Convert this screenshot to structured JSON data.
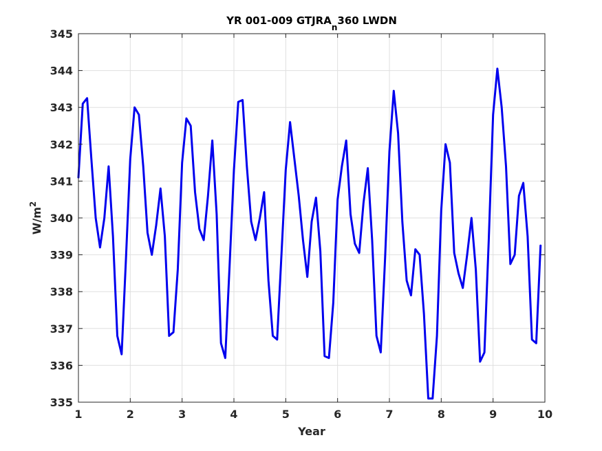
{
  "chart_data": {
    "type": "line",
    "title_main": "YR 001-009 GTJRA",
    "title_sub": "n",
    "title_end": "360 LWDN",
    "xlabel": "Year",
    "ylabel_main": "W/m",
    "ylabel_sup": "2",
    "xlim": [
      1,
      10
    ],
    "ylim": [
      335,
      345
    ],
    "xticks": [
      "1",
      "2",
      "3",
      "4",
      "5",
      "6",
      "7",
      "8",
      "9",
      "10"
    ],
    "yticks": [
      "335",
      "336",
      "337",
      "338",
      "339",
      "340",
      "341",
      "342",
      "343",
      "344",
      "345"
    ],
    "grid": true,
    "series": [
      {
        "color": "#0000ee",
        "x": [
          1.0,
          1.0833,
          1.1667,
          1.25,
          1.3333,
          1.4167,
          1.5,
          1.5833,
          1.6667,
          1.75,
          1.8333,
          1.9167,
          2.0,
          2.0833,
          2.1667,
          2.25,
          2.3333,
          2.4167,
          2.5,
          2.5833,
          2.6667,
          2.75,
          2.8333,
          2.9167,
          3.0,
          3.0833,
          3.1667,
          3.25,
          3.3333,
          3.4167,
          3.5,
          3.5833,
          3.6667,
          3.75,
          3.8333,
          3.9167,
          4.0,
          4.0833,
          4.1667,
          4.25,
          4.3333,
          4.4167,
          4.5,
          4.5833,
          4.6667,
          4.75,
          4.8333,
          4.9167,
          5.0,
          5.0833,
          5.1667,
          5.25,
          5.3333,
          5.4167,
          5.5,
          5.5833,
          5.6667,
          5.75,
          5.8333,
          5.9167,
          6.0,
          6.0833,
          6.1667,
          6.25,
          6.3333,
          6.4167,
          6.5,
          6.5833,
          6.6667,
          6.75,
          6.8333,
          6.9167,
          7.0,
          7.0833,
          7.1667,
          7.25,
          7.3333,
          7.4167,
          7.5,
          7.5833,
          7.6667,
          7.75,
          7.8333,
          7.9167,
          8.0,
          8.0833,
          8.1667,
          8.25,
          8.3333,
          8.4167,
          8.5,
          8.5833,
          8.6667,
          8.75,
          8.8333,
          8.9167,
          9.0,
          9.0833,
          9.1667,
          9.25,
          9.3333,
          9.4167,
          9.5,
          9.5833,
          9.6667,
          9.75,
          9.8333,
          9.9167
        ],
        "y": [
          341.1,
          343.1,
          343.25,
          341.6,
          340.0,
          339.2,
          340.0,
          341.4,
          339.5,
          336.8,
          336.3,
          338.9,
          341.6,
          343.0,
          342.8,
          341.4,
          339.6,
          339.0,
          339.8,
          340.8,
          339.5,
          336.8,
          336.9,
          338.6,
          341.5,
          342.7,
          342.5,
          340.7,
          339.7,
          339.4,
          340.6,
          342.1,
          340.1,
          336.6,
          336.2,
          338.7,
          341.3,
          343.15,
          343.2,
          341.4,
          339.9,
          339.4,
          340.0,
          340.7,
          338.3,
          336.8,
          336.7,
          339.0,
          341.3,
          342.6,
          341.6,
          340.6,
          339.4,
          338.4,
          339.9,
          340.55,
          339.1,
          336.25,
          336.2,
          337.7,
          340.5,
          341.4,
          342.1,
          340.1,
          339.3,
          339.05,
          340.4,
          341.35,
          339.4,
          336.8,
          336.35,
          338.9,
          341.8,
          343.45,
          342.3,
          339.9,
          338.3,
          337.9,
          339.15,
          339.0,
          337.4,
          335.1,
          335.1,
          336.8,
          340.2,
          342.0,
          341.5,
          339.05,
          338.5,
          338.1,
          339.0,
          340.0,
          338.6,
          336.1,
          336.35,
          339.4,
          342.8,
          344.05,
          343.0,
          341.4,
          338.75,
          339.0,
          340.6,
          340.95,
          339.5,
          336.7,
          336.6,
          339.25
        ]
      }
    ]
  }
}
